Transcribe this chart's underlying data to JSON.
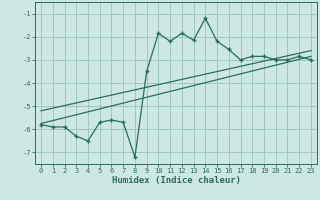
{
  "xlabel": "Humidex (Indice chaleur)",
  "bg_color": "#cde8e2",
  "grid_color": "#9dc8c0",
  "line_color": "#2a6b60",
  "xlim": [
    -0.5,
    23.5
  ],
  "ylim": [
    -7.5,
    -0.5
  ],
  "yticks": [
    -7,
    -6,
    -5,
    -4,
    -3,
    -2,
    -1
  ],
  "xticks": [
    0,
    1,
    2,
    3,
    4,
    5,
    6,
    7,
    8,
    9,
    10,
    11,
    12,
    13,
    14,
    15,
    16,
    17,
    18,
    19,
    20,
    21,
    22,
    23
  ],
  "main_x": [
    0,
    1,
    2,
    3,
    4,
    5,
    6,
    7,
    8,
    9,
    10,
    11,
    12,
    13,
    14,
    15,
    16,
    17,
    18,
    19,
    20,
    21,
    22,
    23
  ],
  "main_y": [
    -5.8,
    -5.9,
    -5.9,
    -6.3,
    -6.5,
    -5.7,
    -5.6,
    -5.7,
    -7.2,
    -3.5,
    -1.85,
    -2.2,
    -1.85,
    -2.15,
    -1.2,
    -2.2,
    -2.55,
    -3.0,
    -2.85,
    -2.85,
    -3.0,
    -3.0,
    -2.85,
    -3.0
  ],
  "line2_x": [
    0,
    23
  ],
  "line2_y": [
    -5.75,
    -2.85
  ],
  "line3_x": [
    0,
    23
  ],
  "line3_y": [
    -5.2,
    -2.6
  ]
}
